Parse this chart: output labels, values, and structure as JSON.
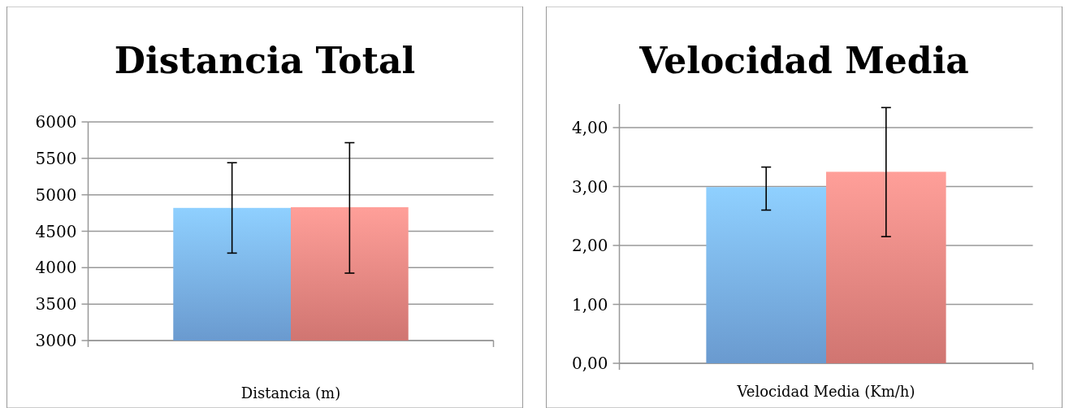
{
  "chart_data": [
    {
      "type": "bar",
      "title": "Distancia Total",
      "xlabel": "Distancia (m)",
      "categories": [
        null
      ],
      "ylim": [
        3000,
        6000
      ],
      "yticks": [
        3000,
        3500,
        4000,
        4500,
        5000,
        5500,
        6000
      ],
      "grid": "y",
      "series": [
        {
          "color": "#78aeea",
          "values": [
            4820
          ],
          "errors": [
            [
              4200,
              5440
            ]
          ]
        },
        {
          "color": "#ec8580",
          "values": [
            4830
          ],
          "errors": [
            [
              3925,
              5715
            ]
          ]
        }
      ]
    },
    {
      "type": "bar",
      "title": "Velocidad Media",
      "xlabel": "Velocidad Media (Km/h)",
      "categories": [
        null
      ],
      "ylim": [
        0,
        4.4
      ],
      "yticks": [
        {
          "value": 0,
          "label": "0,00"
        },
        {
          "value": 1,
          "label": "1,00"
        },
        {
          "value": 2,
          "label": "2,00"
        },
        {
          "value": 3,
          "label": "3,00"
        },
        {
          "value": 4,
          "label": "4,00"
        }
      ],
      "grid": "y",
      "series": [
        {
          "color": "#78aeea",
          "values": [
            2.99
          ],
          "errors": [
            [
              2.6,
              3.33
            ]
          ]
        },
        {
          "color": "#ec8580",
          "values": [
            3.25
          ],
          "errors": [
            [
              2.15,
              4.34
            ]
          ]
        }
      ]
    }
  ]
}
